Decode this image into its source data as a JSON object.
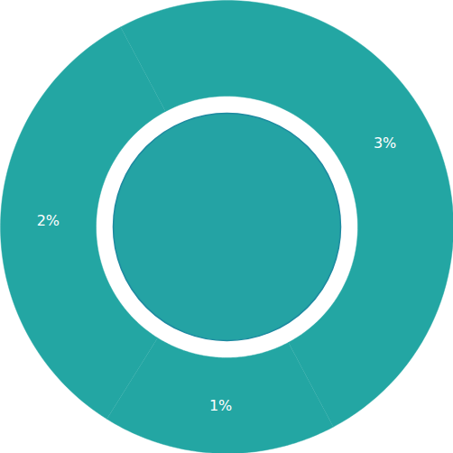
{
  "chart_data": {
    "type": "donut",
    "values": [
      3,
      1,
      2
    ],
    "value_labels": [
      "3%",
      "1%",
      "2%"
    ],
    "colors": [
      "#23a6a3",
      "#23a6a3",
      "#23a6a3"
    ],
    "data_labels": true
  }
}
